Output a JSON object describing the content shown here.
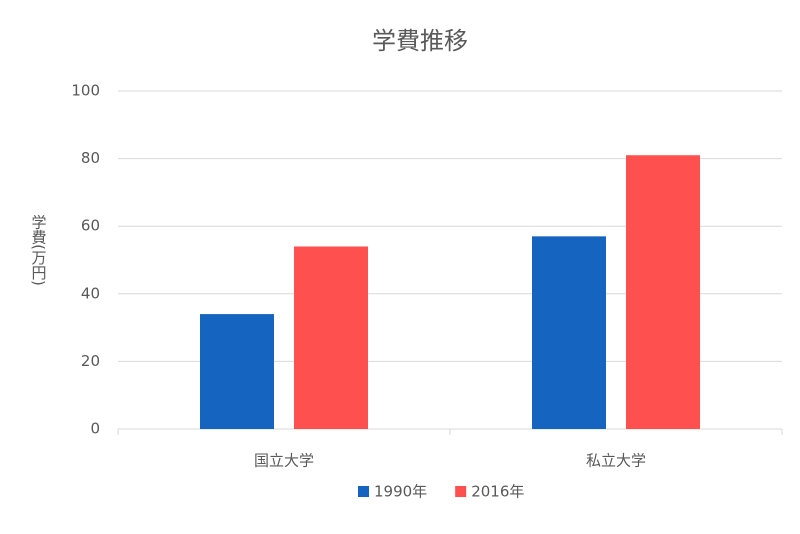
{
  "chart_data": {
    "type": "bar",
    "title": "学費推移",
    "y_label": "学費(万円)",
    "categories": [
      "国立大学",
      "私立大学"
    ],
    "series": [
      {
        "name": "1990年",
        "color": "#1565c0",
        "values": [
          34,
          57
        ]
      },
      {
        "name": "2016年",
        "color": "#ff5050",
        "values": [
          54,
          81
        ]
      }
    ],
    "ylim": [
      0,
      100
    ],
    "yticks": [
      0,
      20,
      40,
      60,
      80,
      100
    ],
    "grid": true,
    "legend": "bottom"
  }
}
